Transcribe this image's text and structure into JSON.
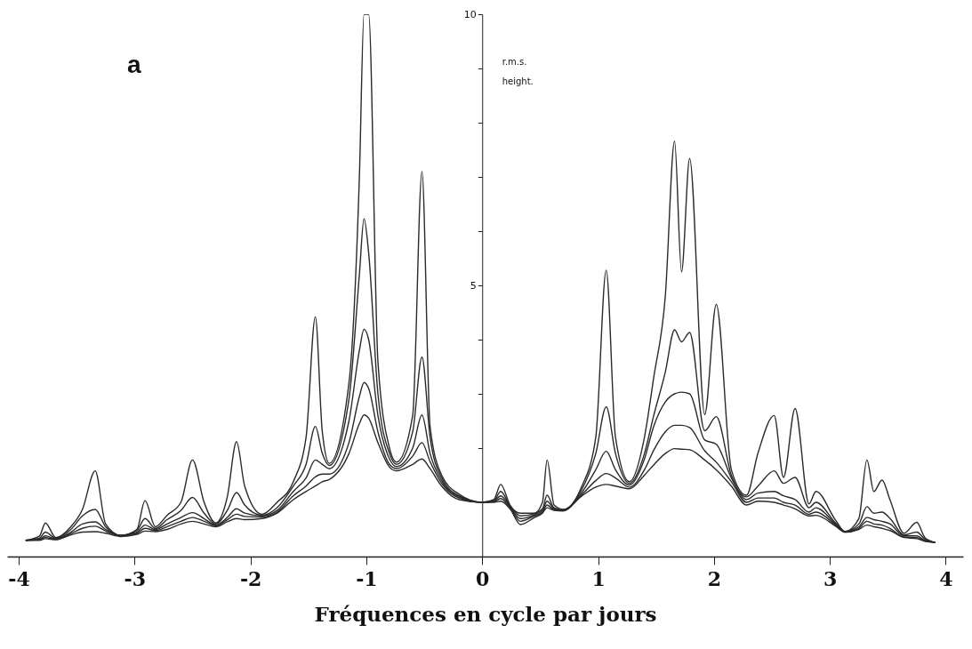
{
  "chart_data": {
    "type": "line",
    "xlabel": "Fréquences en cycle par jours",
    "ylabel": "r.m.s. height.",
    "annotations": [
      "a"
    ],
    "x": [
      -3.94,
      -3.82,
      -3.77,
      -3.68,
      -3.55,
      -3.45,
      -3.34,
      -3.25,
      -3.12,
      -2.98,
      -2.91,
      -2.82,
      -2.72,
      -2.6,
      -2.5,
      -2.4,
      -2.3,
      -2.2,
      -2.12,
      -2.05,
      -1.9,
      -1.77,
      -1.63,
      -1.52,
      -1.44,
      -1.38,
      -1.32,
      -1.15,
      -1.06,
      -1.02,
      -0.98,
      -0.9,
      -0.8,
      -0.74,
      -0.6,
      -0.52,
      -0.45,
      -0.35,
      -0.2,
      0,
      0.1,
      0.16,
      0.24,
      0.33,
      0.45,
      0.52,
      0.56,
      0.62,
      0.7,
      0.85,
      0.98,
      1.07,
      1.15,
      1.27,
      1.4,
      1.48,
      1.58,
      1.66,
      1.72,
      1.79,
      1.92,
      2.02,
      2.15,
      2.28,
      2.38,
      2.52,
      2.6,
      2.7,
      2.82,
      2.88,
      3.05,
      3.13,
      3.25,
      3.32,
      3.38,
      3.45,
      3.52,
      3.64,
      3.75,
      3.82,
      3.91
    ],
    "series": [
      {
        "color": "#2a2a2a",
        "values": [
          0.3,
          0.38,
          0.62,
          0.35,
          0.55,
          0.87,
          1.58,
          0.6,
          0.39,
          0.5,
          1.03,
          0.55,
          0.76,
          1.0,
          1.78,
          1.0,
          0.62,
          1.1,
          2.12,
          1.3,
          0.78,
          1.0,
          1.38,
          2.2,
          4.42,
          2.3,
          1.72,
          3.2,
          7.0,
          10,
          10,
          3.6,
          2.0,
          1.74,
          2.6,
          7.1,
          2.4,
          1.5,
          1.15,
          1.0,
          1.05,
          1.33,
          0.95,
          0.8,
          0.8,
          1.0,
          1.78,
          0.95,
          0.87,
          1.25,
          2.2,
          5.28,
          2.2,
          1.38,
          2.2,
          3.3,
          4.8,
          7.66,
          5.25,
          7.34,
          2.62,
          4.65,
          1.6,
          1.13,
          1.91,
          2.6,
          1.46,
          2.73,
          0.97,
          1.2,
          0.67,
          0.46,
          0.7,
          1.78,
          1.2,
          1.41,
          1.04,
          0.43,
          0.63,
          0.35,
          0.26
        ]
      },
      {
        "color": "#2a2a2a",
        "values": [
          0.3,
          0.34,
          0.45,
          0.34,
          0.5,
          0.75,
          0.87,
          0.55,
          0.39,
          0.48,
          0.7,
          0.52,
          0.68,
          0.85,
          1.09,
          0.8,
          0.6,
          0.85,
          1.18,
          0.95,
          0.76,
          0.9,
          1.3,
          1.7,
          2.4,
          1.9,
          1.68,
          2.9,
          5.2,
          6.23,
          5.6,
          3.0,
          1.9,
          1.7,
          2.3,
          3.68,
          2.2,
          1.45,
          1.12,
          1.0,
          1.03,
          1.2,
          0.93,
          0.75,
          0.79,
          0.88,
          1.13,
          0.9,
          0.86,
          1.2,
          1.9,
          2.76,
          1.9,
          1.35,
          1.9,
          2.6,
          3.4,
          4.18,
          3.96,
          4.13,
          2.32,
          2.58,
          1.5,
          1.1,
          1.3,
          1.58,
          1.35,
          1.46,
          0.9,
          1.0,
          0.62,
          0.46,
          0.6,
          0.92,
          0.8,
          0.82,
          0.7,
          0.4,
          0.45,
          0.32,
          0.26
        ]
      },
      {
        "color": "#2a2a2a",
        "values": [
          0.3,
          0.32,
          0.38,
          0.33,
          0.45,
          0.6,
          0.64,
          0.5,
          0.39,
          0.45,
          0.58,
          0.5,
          0.6,
          0.72,
          0.81,
          0.7,
          0.58,
          0.72,
          0.88,
          0.8,
          0.75,
          0.85,
          1.2,
          1.45,
          1.78,
          1.7,
          1.62,
          2.5,
          3.8,
          4.19,
          4.0,
          2.6,
          1.8,
          1.66,
          2.0,
          2.61,
          1.9,
          1.4,
          1.1,
          1.0,
          1.02,
          1.12,
          0.92,
          0.7,
          0.77,
          0.85,
          1.02,
          0.88,
          0.85,
          1.15,
          1.6,
          1.94,
          1.6,
          1.32,
          1.8,
          2.4,
          2.85,
          3.0,
          3.03,
          3.0,
          2.15,
          2.07,
          1.45,
          1.05,
          1.17,
          1.2,
          1.12,
          1.05,
          0.82,
          0.9,
          0.6,
          0.46,
          0.55,
          0.72,
          0.68,
          0.65,
          0.6,
          0.38,
          0.38,
          0.3,
          0.26
        ]
      },
      {
        "color": "#2a2a2a",
        "values": [
          0.3,
          0.31,
          0.35,
          0.32,
          0.42,
          0.52,
          0.56,
          0.47,
          0.38,
          0.43,
          0.52,
          0.48,
          0.55,
          0.65,
          0.72,
          0.65,
          0.57,
          0.68,
          0.78,
          0.74,
          0.73,
          0.82,
          1.12,
          1.3,
          1.47,
          1.52,
          1.52,
          2.1,
          2.95,
          3.21,
          3.1,
          2.3,
          1.7,
          1.62,
          1.85,
          2.1,
          1.75,
          1.35,
          1.08,
          1.0,
          1.01,
          1.07,
          0.9,
          0.65,
          0.75,
          0.82,
          0.95,
          0.86,
          0.85,
          1.12,
          1.4,
          1.53,
          1.45,
          1.28,
          1.6,
          1.96,
          2.3,
          2.42,
          2.42,
          2.38,
          1.95,
          1.74,
          1.38,
          1.0,
          1.08,
          1.08,
          1.0,
          0.95,
          0.78,
          0.82,
          0.58,
          0.45,
          0.52,
          0.65,
          0.6,
          0.58,
          0.52,
          0.36,
          0.35,
          0.29,
          0.26
        ]
      },
      {
        "color": "#2a2a2a",
        "values": [
          0.3,
          0.3,
          0.33,
          0.31,
          0.4,
          0.45,
          0.46,
          0.43,
          0.37,
          0.41,
          0.47,
          0.46,
          0.5,
          0.6,
          0.65,
          0.6,
          0.55,
          0.64,
          0.7,
          0.68,
          0.7,
          0.8,
          1.05,
          1.2,
          1.3,
          1.38,
          1.42,
          1.9,
          2.45,
          2.61,
          2.55,
          2.1,
          1.65,
          1.58,
          1.7,
          1.8,
          1.62,
          1.3,
          1.05,
          1.0,
          1.0,
          1.02,
          0.88,
          0.59,
          0.72,
          0.8,
          0.9,
          0.85,
          0.84,
          1.1,
          1.28,
          1.33,
          1.3,
          1.25,
          1.5,
          1.69,
          1.9,
          1.99,
          1.98,
          1.97,
          1.78,
          1.6,
          1.3,
          0.95,
          1.02,
          1.0,
          0.95,
          0.88,
          0.75,
          0.76,
          0.56,
          0.45,
          0.5,
          0.58,
          0.55,
          0.52,
          0.48,
          0.35,
          0.33,
          0.28,
          0.26
        ]
      }
    ],
    "xlim": [
      -4.1,
      4.15
    ],
    "xticks": [
      -4,
      -3,
      -2,
      -1,
      0,
      1,
      2,
      3,
      4
    ],
    "ylim": [
      0,
      10
    ],
    "yticks": [
      {
        "value": 0,
        "label": null
      },
      {
        "value": 1,
        "label": null
      },
      {
        "value": 2,
        "label": null
      },
      {
        "value": 3,
        "label": null
      },
      {
        "value": 4,
        "label": null
      },
      5,
      {
        "value": 6,
        "label": null
      },
      {
        "value": 7,
        "label": null
      },
      {
        "value": 8,
        "label": null
      },
      {
        "value": 9,
        "label": null
      },
      10
    ],
    "grid": false,
    "line_style": "solid"
  }
}
